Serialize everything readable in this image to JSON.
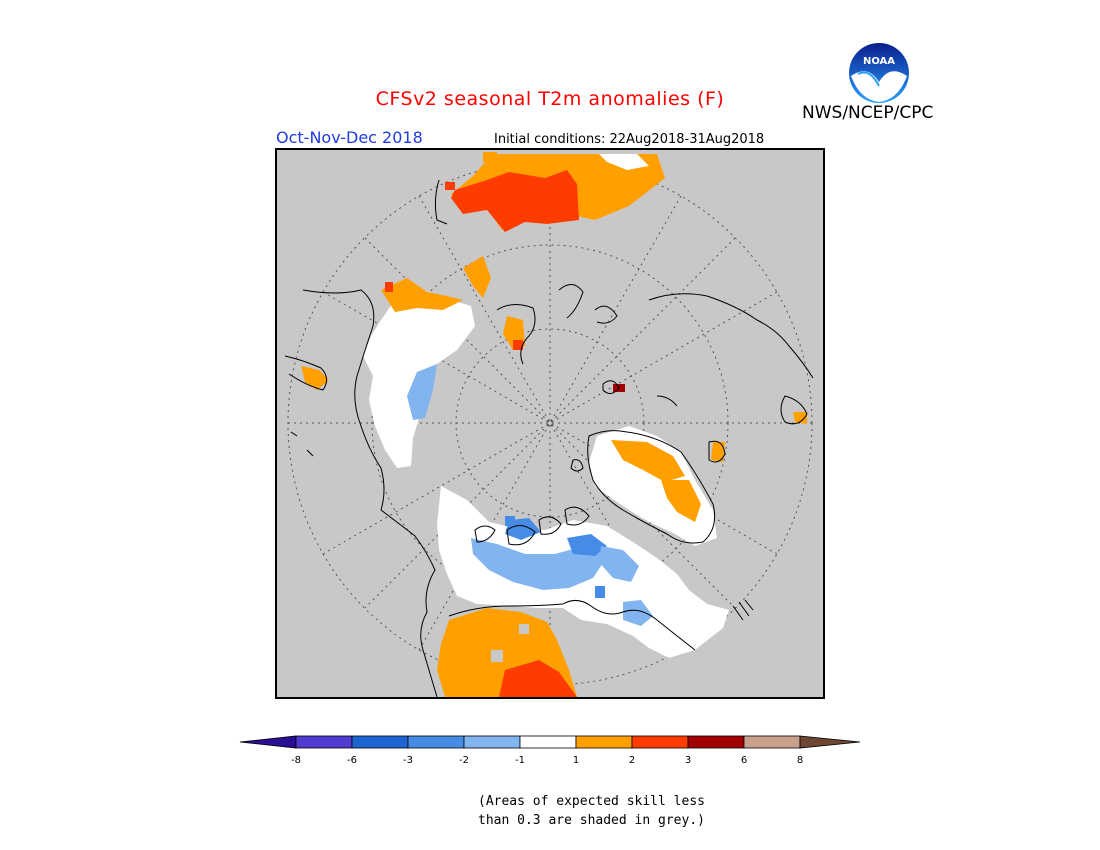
{
  "header": {
    "title": "CFSv2 seasonal T2m anomalies (F)",
    "period": "Oct-Nov-Dec 2018",
    "initial_conditions": "Initial conditions: 22Aug2018-31Aug2018",
    "agency": "NWS/NCEP/CPC",
    "logo_text": "NOAA"
  },
  "colors": {
    "title": "#ff0000",
    "period": "#1e3ce6",
    "land_grey": "#c8c8c8",
    "bins": [
      "#2a0e94",
      "#4f3bcf",
      "#1e64d2",
      "#468ce6",
      "#82b4f0",
      "#ffffff",
      "#ffa000",
      "#ff3c00",
      "#a00000",
      "#c8a08c",
      "#6e4632"
    ]
  },
  "colorbar": {
    "tick_labels": [
      "-8",
      "-6",
      "-3",
      "-2",
      "-1",
      "1",
      "2",
      "3",
      "6",
      "8"
    ]
  },
  "note": {
    "line1": "(Areas of expected skill less",
    "line2": "than 0.3 are shaded in grey.)"
  }
}
